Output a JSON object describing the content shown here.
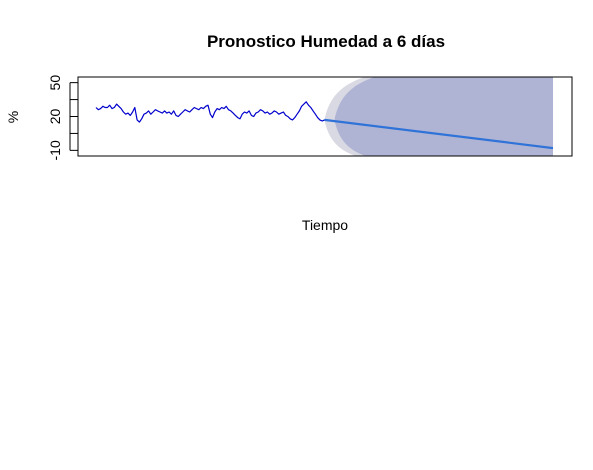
{
  "chart_data": {
    "type": "line",
    "title": "Pronostico Humedad a 6 días",
    "xlabel": "Tiempo",
    "ylabel": "%",
    "ylim": [
      -15,
      55
    ],
    "yticks": [
      {
        "value": 50,
        "label": "50"
      },
      {
        "value": 35,
        "label": ""
      },
      {
        "value": 20,
        "label": "20"
      },
      {
        "value": 5,
        "label": ""
      },
      {
        "value": -10,
        "label": "-10"
      }
    ],
    "xticks_visible": false,
    "grid": false,
    "legend": "none",
    "xlim": [
      0,
      100
    ],
    "forecast_start": 50,
    "series": [
      {
        "role": "historical",
        "color": "#0000cd",
        "x": [
          0,
          0.5,
          1,
          1.5,
          2,
          2.5,
          3,
          3.5,
          4,
          4.5,
          5,
          5.5,
          6,
          6.5,
          7,
          7.5,
          8,
          8.5,
          9,
          9.5,
          10,
          10.5,
          11,
          11.5,
          12,
          12.5,
          13,
          13.5,
          14,
          14.5,
          15,
          15.5,
          16,
          16.5,
          17,
          17.5,
          18,
          18.5,
          19,
          19.5,
          20,
          20.5,
          21,
          21.5,
          22,
          22.5,
          23,
          23.5,
          24,
          24.5,
          25,
          25.5,
          26,
          26.5,
          27,
          27.5,
          28,
          28.5,
          29,
          29.5,
          30,
          30.5,
          31,
          31.5,
          32,
          32.5,
          33,
          33.5,
          34,
          34.5,
          35,
          35.5,
          36,
          36.5,
          37,
          37.5,
          38,
          38.5,
          39,
          39.5,
          40,
          40.5,
          41,
          41.5,
          42,
          42.5,
          43,
          43.5,
          44,
          44.5,
          45,
          45.5,
          46,
          46.5,
          47,
          47.5,
          48,
          48.5,
          49,
          49.5,
          50
        ],
        "values": [
          28,
          26,
          27,
          29,
          28,
          28,
          30,
          27,
          28,
          31,
          29,
          27,
          24,
          22,
          23,
          21,
          24,
          28,
          17,
          15,
          18,
          22,
          23,
          25,
          22,
          24,
          26,
          25,
          24,
          23,
          25,
          23,
          24,
          22,
          25,
          21,
          20,
          22,
          24,
          26,
          25,
          24,
          26,
          28,
          27,
          26,
          28,
          27,
          29,
          30,
          22,
          19,
          24,
          27,
          26,
          28,
          27,
          29,
          26,
          25,
          23,
          21,
          19,
          18,
          22,
          24,
          23,
          25,
          21,
          20,
          23,
          24,
          26,
          25,
          23,
          24,
          22,
          23,
          25,
          24,
          22,
          23,
          24,
          21,
          20,
          18,
          17,
          19,
          22,
          25,
          29,
          31,
          33,
          30,
          28,
          25,
          22,
          19,
          17,
          16,
          17
        ]
      },
      {
        "role": "forecast",
        "color": "#2f73d8",
        "x": [
          50,
          100
        ],
        "values": [
          17,
          -8
        ]
      }
    ],
    "bands": [
      {
        "level": "95%",
        "color": "#d9d9e3",
        "lower_end": -15,
        "upper_end": 55
      },
      {
        "level": "80%",
        "color": "#b0b4d4",
        "lower_end": -15,
        "upper_end": 55
      }
    ]
  }
}
